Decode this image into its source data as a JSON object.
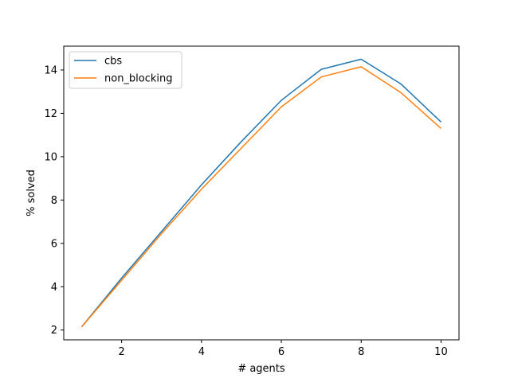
{
  "chart_data": {
    "type": "line",
    "title": "",
    "xlabel": "# agents",
    "ylabel": "% solved",
    "xlim": [
      0.55,
      10.45
    ],
    "ylim": [
      1.55,
      15.1
    ],
    "xticks": [
      2,
      4,
      6,
      8,
      10
    ],
    "yticks": [
      2,
      4,
      6,
      8,
      10,
      12,
      14
    ],
    "grid": false,
    "legend_position": "top-left",
    "x": [
      1,
      2,
      3,
      4,
      5,
      6,
      7,
      8,
      9,
      10
    ],
    "series": [
      {
        "name": "cbs",
        "color": "#1f77b4",
        "values": [
          2.15,
          4.4,
          6.55,
          8.7,
          10.7,
          12.6,
          14.03,
          14.5,
          13.35,
          11.6
        ]
      },
      {
        "name": "non_blocking",
        "color": "#ff7f0e",
        "values": [
          2.15,
          4.3,
          6.45,
          8.5,
          10.4,
          12.3,
          13.68,
          14.15,
          12.95,
          11.3
        ]
      }
    ]
  }
}
